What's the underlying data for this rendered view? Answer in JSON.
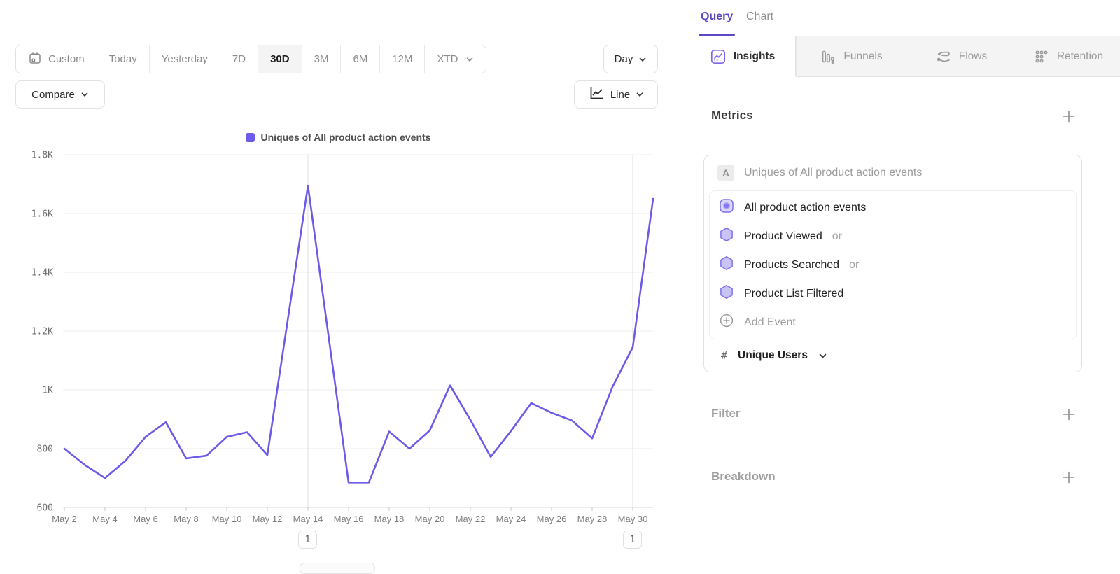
{
  "colors": {
    "accent": "#5b49c8",
    "line": "#6C5BE8",
    "icon_purple": "#7b68f0"
  },
  "toolbar": {
    "ranges": {
      "custom": "Custom",
      "today": "Today",
      "yesterday": "Yesterday",
      "d7": "7D",
      "d30": "30D",
      "m3": "3M",
      "m6": "6M",
      "m12": "12M",
      "xtd": "XTD"
    },
    "active_range": "30D",
    "granularity": "Day",
    "compare": "Compare",
    "chart_type": "Line"
  },
  "legend": {
    "label": "Uniques of All product action events"
  },
  "chart_data": {
    "type": "line",
    "title": "Uniques of All product action events",
    "xlabel": "",
    "ylabel": "",
    "grid": "horizontal",
    "legend_position": "top-center",
    "line_color": "#6C5BE8",
    "ylim": [
      600,
      1800
    ],
    "y_ticks": [
      {
        "value": 600,
        "label": "600"
      },
      {
        "value": 800,
        "label": "800"
      },
      {
        "value": 1000,
        "label": "1K"
      },
      {
        "value": 1200,
        "label": "1.2K"
      },
      {
        "value": 1400,
        "label": "1.4K"
      },
      {
        "value": 1600,
        "label": "1.6K"
      },
      {
        "value": 1800,
        "label": "1.8K"
      }
    ],
    "x": [
      "May 2",
      "May 3",
      "May 4",
      "May 5",
      "May 6",
      "May 7",
      "May 8",
      "May 9",
      "May 10",
      "May 11",
      "May 12",
      "May 13",
      "May 14",
      "May 15",
      "May 16",
      "May 17",
      "May 18",
      "May 19",
      "May 20",
      "May 21",
      "May 22",
      "May 23",
      "May 24",
      "May 25",
      "May 26",
      "May 27",
      "May 28",
      "May 29",
      "May 30",
      "May 31"
    ],
    "values": [
      800,
      745,
      700,
      758,
      840,
      890,
      767,
      776,
      840,
      856,
      778,
      1236,
      1695,
      1190,
      685,
      685,
      858,
      800,
      862,
      1015,
      898,
      772,
      860,
      955,
      922,
      896,
      835,
      1010,
      1145,
      1650
    ],
    "series": [
      {
        "name": "Uniques of All product action events"
      }
    ],
    "annotations": [
      {
        "index": 12,
        "x": "May 14",
        "label": "1"
      },
      {
        "index": 28,
        "x": "May 30",
        "label": "1"
      }
    ]
  },
  "panel": {
    "tabs": {
      "query": "Query",
      "chart": "Chart"
    },
    "report_tabs": {
      "insights": "Insights",
      "funnels": "Funnels",
      "flows": "Flows",
      "retention": "Retention"
    },
    "metrics": {
      "title": "Metrics",
      "group_badge": "A",
      "group_label": "Uniques of All product action events",
      "events": [
        {
          "label": "All product action events",
          "suffix": ""
        },
        {
          "label": "Product Viewed",
          "suffix": "or"
        },
        {
          "label": "Products Searched",
          "suffix": "or"
        },
        {
          "label": "Product List Filtered",
          "suffix": ""
        }
      ],
      "add_event": "Add Event",
      "aggregation": {
        "symbol": "#",
        "label": "Unique Users"
      }
    },
    "filter": {
      "title": "Filter"
    },
    "breakdown": {
      "title": "Breakdown"
    }
  }
}
